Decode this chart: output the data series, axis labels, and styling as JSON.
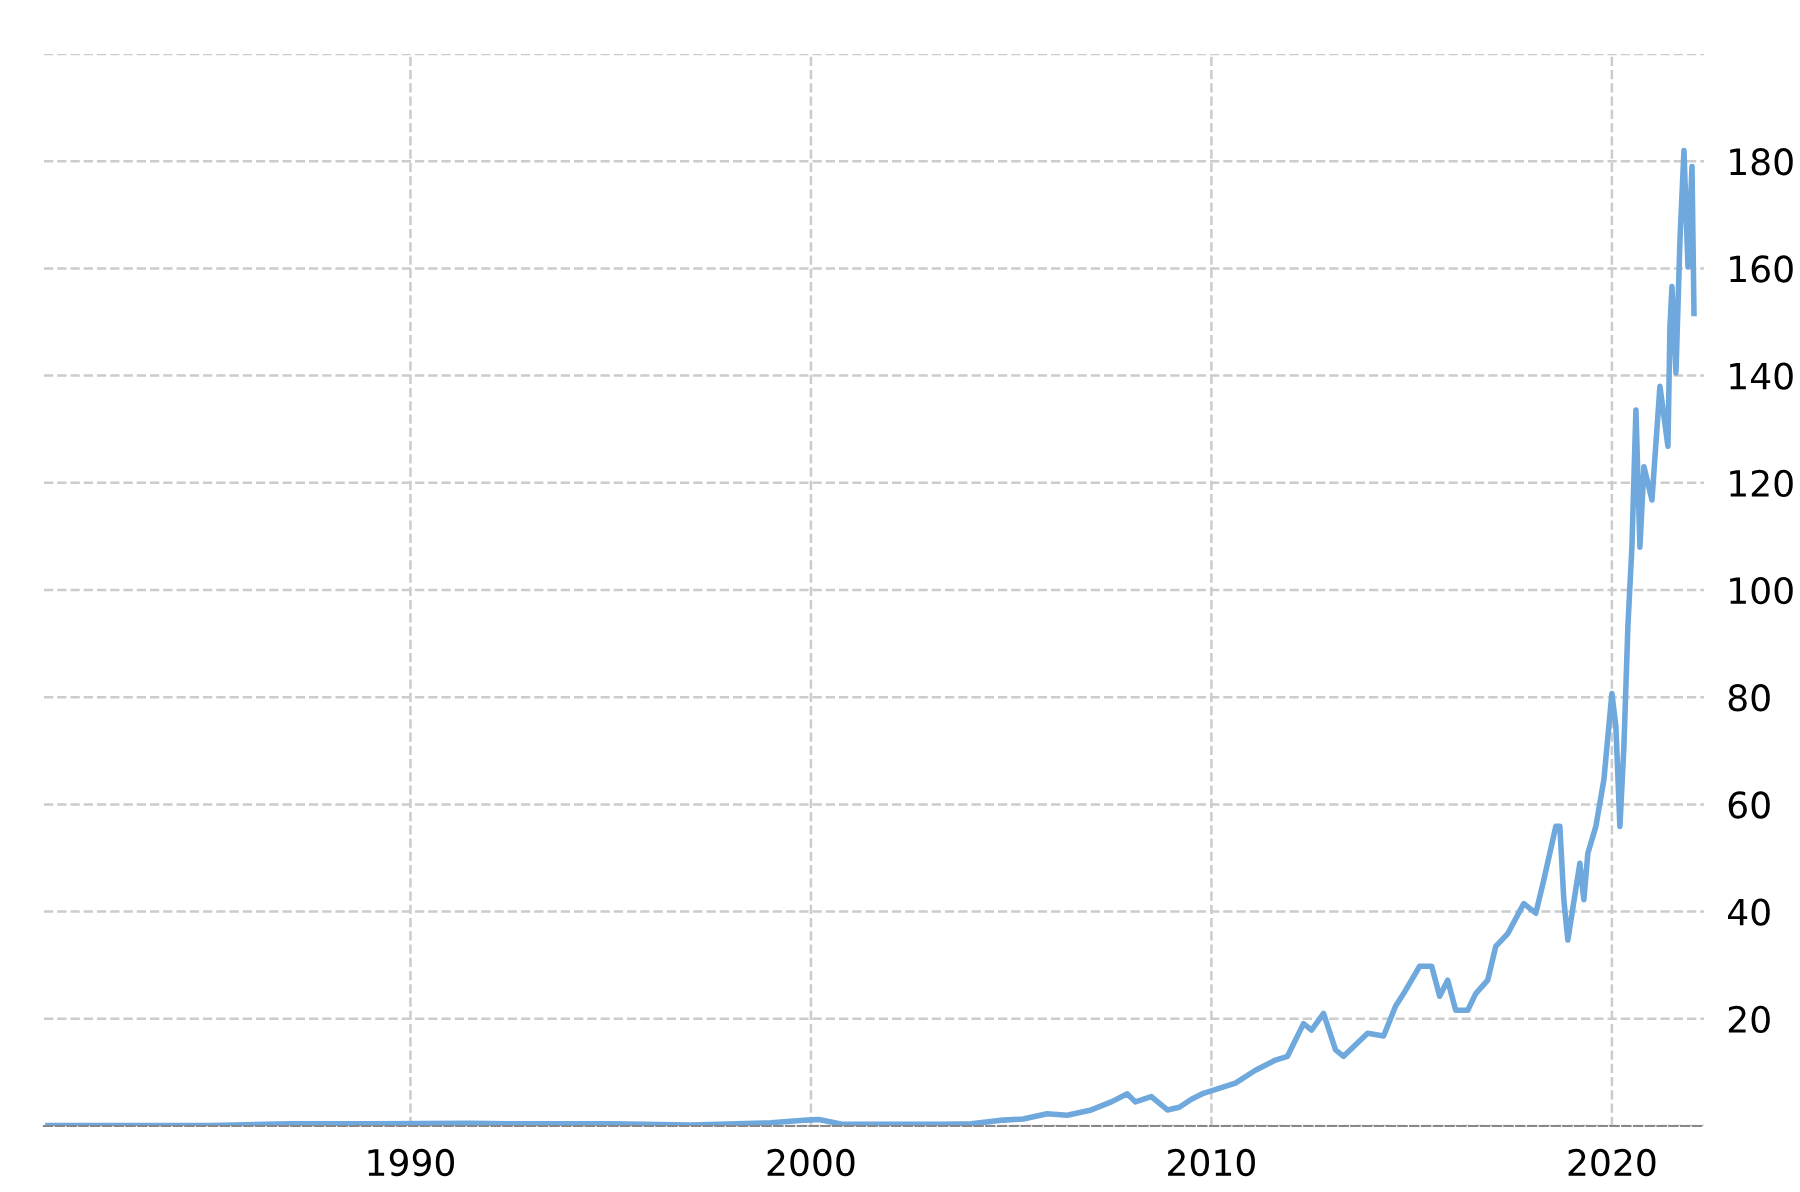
{
  "chart_data": {
    "type": "line",
    "xlim": [
      1980.85,
      2022.3
    ],
    "xticks": [
      1990,
      2000,
      2010,
      2020
    ],
    "ylim": [
      0,
      200
    ],
    "yticks": [
      {
        "value": 0,
        "label": null
      },
      20,
      40,
      60,
      80,
      100,
      120,
      140,
      160,
      180,
      {
        "value": 200,
        "label": null
      }
    ],
    "grid": true,
    "marker": "none",
    "series": [
      {
        "color": "#6fa8dc",
        "x": [
          1980.95,
          1983,
          1985,
          1987,
          1989,
          1991.5,
          1993,
          1995,
          1997,
          1999,
          1999.9,
          2000.2,
          2000.8,
          2002,
          2003.3,
          2004,
          2004.8,
          2005.3,
          2005.9,
          2006.4,
          2007.0,
          2007.5,
          2007.9,
          2008.1,
          2008.5,
          2008.9,
          2009.2,
          2009.5,
          2009.8,
          2010.6,
          2011.1,
          2011.6,
          2011.9,
          2012.3,
          2012.5,
          2012.8,
          2013.1,
          2013.3,
          2013.9,
          2014.3,
          2014.6,
          2014.8,
          2015.2,
          2015.5,
          2015.7,
          2015.9,
          2016.1,
          2016.4,
          2016.6,
          2016.9,
          2017.1,
          2017.4,
          2017.8,
          2018.1,
          2018.3,
          2018.6,
          2018.7,
          2018.8,
          2018.9,
          2019.2,
          2019.3,
          2019.4,
          2019.6,
          2019.8,
          2020.0,
          2020.1,
          2020.2,
          2020.3,
          2020.4,
          2020.5,
          2020.6,
          2020.7,
          2020.8,
          2021.0,
          2021.2,
          2021.4,
          2021.45,
          2021.5,
          2021.6,
          2021.7,
          2021.8,
          2021.9,
          2022.0,
          2022.05
        ],
        "values": [
          0.1,
          0.1,
          0.1,
          0.4,
          0.4,
          0.5,
          0.4,
          0.4,
          0.2,
          0.6,
          1.1,
          1.2,
          0.3,
          0.3,
          0.3,
          0.4,
          1.1,
          1.3,
          2.3,
          2.0,
          3.0,
          4.5,
          6.0,
          4.5,
          5.5,
          3.0,
          3.5,
          5.0,
          6.1,
          8.0,
          10.4,
          12.3,
          13,
          19.1,
          17.9,
          21,
          14.2,
          13,
          17.3,
          16.8,
          22.4,
          24.7,
          29.8,
          29.8,
          24.2,
          27.2,
          21.6,
          21.6,
          24.7,
          27.2,
          33.5,
          35.9,
          41.5,
          39.7,
          45.9,
          55.9,
          55.9,
          42.2,
          34.7,
          49,
          42.2,
          50.9,
          55.9,
          64.6,
          80.7,
          74.5,
          55.9,
          70.8,
          93.3,
          108,
          133.6,
          108,
          123,
          116.8,
          138,
          126.8,
          149.2,
          156.6,
          140.5,
          165.3,
          182,
          160.3,
          179,
          151.6
        ]
      }
    ]
  }
}
